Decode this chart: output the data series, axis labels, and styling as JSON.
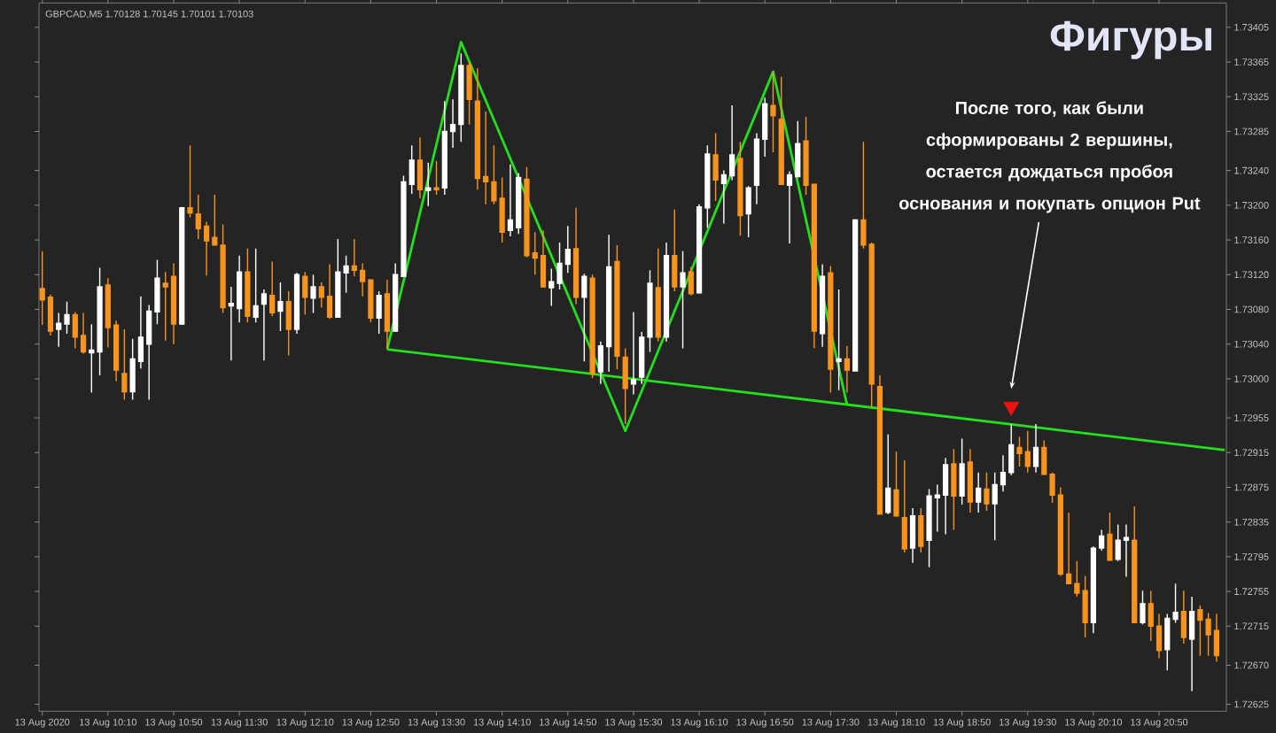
{
  "chart_data": {
    "type": "candlestick",
    "title": "Фигуры",
    "subtitle": "GBPCAD,M5 1.70128 1.70145 1.70101 1.70103",
    "x": [
      "2020-08-13T09:30",
      "2020-08-13T09:35",
      "2020-08-13T09:40",
      "2020-08-13T09:45",
      "2020-08-13T09:50",
      "2020-08-13T09:55",
      "2020-08-13T10:00",
      "2020-08-13T10:05",
      "2020-08-13T10:10",
      "2020-08-13T10:15",
      "2020-08-13T10:20",
      "2020-08-13T10:25",
      "2020-08-13T10:30",
      "2020-08-13T10:35",
      "2020-08-13T10:40",
      "2020-08-13T10:45",
      "2020-08-13T10:50",
      "2020-08-13T10:55",
      "2020-08-13T11:00",
      "2020-08-13T11:05",
      "2020-08-13T11:10",
      "2020-08-13T11:15",
      "2020-08-13T11:20",
      "2020-08-13T11:25",
      "2020-08-13T11:30",
      "2020-08-13T11:35",
      "2020-08-13T11:40",
      "2020-08-13T11:45",
      "2020-08-13T11:50",
      "2020-08-13T11:55",
      "2020-08-13T12:00",
      "2020-08-13T12:05",
      "2020-08-13T12:10",
      "2020-08-13T12:15",
      "2020-08-13T12:20",
      "2020-08-13T12:25",
      "2020-08-13T12:30",
      "2020-08-13T12:35",
      "2020-08-13T12:40",
      "2020-08-13T12:45",
      "2020-08-13T12:50",
      "2020-08-13T12:55",
      "2020-08-13T13:00",
      "2020-08-13T13:05",
      "2020-08-13T13:10",
      "2020-08-13T13:15",
      "2020-08-13T13:20",
      "2020-08-13T13:25",
      "2020-08-13T13:30",
      "2020-08-13T13:35",
      "2020-08-13T13:40",
      "2020-08-13T13:45",
      "2020-08-13T13:50",
      "2020-08-13T13:55",
      "2020-08-13T14:00",
      "2020-08-13T14:05",
      "2020-08-13T14:10",
      "2020-08-13T14:15",
      "2020-08-13T14:20",
      "2020-08-13T14:25",
      "2020-08-13T14:30",
      "2020-08-13T14:35",
      "2020-08-13T14:40",
      "2020-08-13T14:45",
      "2020-08-13T14:50",
      "2020-08-13T14:55",
      "2020-08-13T15:00",
      "2020-08-13T15:05",
      "2020-08-13T15:10",
      "2020-08-13T15:15",
      "2020-08-13T15:20",
      "2020-08-13T15:25",
      "2020-08-13T15:30",
      "2020-08-13T15:35",
      "2020-08-13T15:40",
      "2020-08-13T15:45",
      "2020-08-13T15:50",
      "2020-08-13T15:55",
      "2020-08-13T16:00",
      "2020-08-13T16:05",
      "2020-08-13T16:10",
      "2020-08-13T16:15",
      "2020-08-13T16:20",
      "2020-08-13T16:25",
      "2020-08-13T16:30",
      "2020-08-13T16:35",
      "2020-08-13T16:40",
      "2020-08-13T16:45",
      "2020-08-13T16:50",
      "2020-08-13T16:55",
      "2020-08-13T17:00",
      "2020-08-13T17:05",
      "2020-08-13T17:10",
      "2020-08-13T17:15",
      "2020-08-13T17:20",
      "2020-08-13T17:25",
      "2020-08-13T17:30",
      "2020-08-13T17:35",
      "2020-08-13T17:40",
      "2020-08-13T17:45",
      "2020-08-13T17:50",
      "2020-08-13T17:55",
      "2020-08-13T18:00",
      "2020-08-13T18:05",
      "2020-08-13T18:10",
      "2020-08-13T18:15",
      "2020-08-13T18:20",
      "2020-08-13T18:25",
      "2020-08-13T18:30",
      "2020-08-13T18:35",
      "2020-08-13T18:40",
      "2020-08-13T18:45",
      "2020-08-13T18:50",
      "2020-08-13T18:55",
      "2020-08-13T19:00",
      "2020-08-13T19:05",
      "2020-08-13T19:10",
      "2020-08-13T19:15",
      "2020-08-13T19:20",
      "2020-08-13T19:25",
      "2020-08-13T19:30",
      "2020-08-13T19:35",
      "2020-08-13T19:40",
      "2020-08-13T19:45",
      "2020-08-13T19:50",
      "2020-08-13T19:55",
      "2020-08-13T20:00",
      "2020-08-13T20:05",
      "2020-08-13T20:10",
      "2020-08-13T20:15",
      "2020-08-13T20:20",
      "2020-08-13T20:25",
      "2020-08-13T20:30",
      "2020-08-13T20:35",
      "2020-08-13T20:40",
      "2020-08-13T20:45",
      "2020-08-13T20:50",
      "2020-08-13T20:55",
      "2020-08-13T21:00",
      "2020-08-13T21:05",
      "2020-08-13T21:10",
      "2020-08-13T21:15",
      "2020-08-13T21:20",
      "2020-08-13T21:25"
    ],
    "ohlc": [
      [
        1.73104,
        1.73147,
        1.73062,
        1.73091
      ],
      [
        1.73094,
        1.73097,
        1.7305,
        1.73055
      ],
      [
        1.73057,
        1.73076,
        1.73037,
        1.73064
      ],
      [
        1.73063,
        1.73089,
        1.73052,
        1.73074
      ],
      [
        1.73074,
        1.73077,
        1.73035,
        1.73048
      ],
      [
        1.7305,
        1.73076,
        1.73029,
        1.73031
      ],
      [
        1.7303,
        1.73063,
        1.72984,
        1.73033
      ],
      [
        1.73031,
        1.73128,
        1.73004,
        1.73106
      ],
      [
        1.73108,
        1.73116,
        1.73036,
        1.73059
      ],
      [
        1.73062,
        1.73067,
        1.72997,
        1.7301
      ],
      [
        1.73006,
        1.73057,
        1.72976,
        1.72985
      ],
      [
        1.72985,
        1.73046,
        1.72976,
        1.73023
      ],
      [
        1.7302,
        1.73095,
        1.73012,
        1.73048
      ],
      [
        1.7304,
        1.73085,
        1.72976,
        1.73078
      ],
      [
        1.73077,
        1.73137,
        1.73063,
        1.73116
      ],
      [
        1.7311,
        1.73123,
        1.73044,
        1.73106
      ],
      [
        1.73118,
        1.73133,
        1.7304,
        1.73063
      ],
      [
        1.73063,
        1.73198,
        1.73062,
        1.73197
      ],
      [
        1.73197,
        1.73269,
        1.73186,
        1.73191
      ],
      [
        1.7319,
        1.73212,
        1.73161,
        1.73173
      ],
      [
        1.73176,
        1.73181,
        1.73119,
        1.73159
      ],
      [
        1.73163,
        1.73212,
        1.73154,
        1.73154
      ],
      [
        1.73154,
        1.73178,
        1.73076,
        1.73082
      ],
      [
        1.73084,
        1.73106,
        1.73021,
        1.73087
      ],
      [
        1.73081,
        1.73142,
        1.73065,
        1.73123
      ],
      [
        1.73123,
        1.7315,
        1.73065,
        1.73072
      ],
      [
        1.73071,
        1.7315,
        1.73065,
        1.73084
      ],
      [
        1.73086,
        1.73103,
        1.73021,
        1.73098
      ],
      [
        1.73096,
        1.73135,
        1.73072,
        1.73076
      ],
      [
        1.73078,
        1.73111,
        1.73055,
        1.73089
      ],
      [
        1.73089,
        1.73101,
        1.73027,
        1.73057
      ],
      [
        1.73057,
        1.73122,
        1.73052,
        1.7312
      ],
      [
        1.73118,
        1.73123,
        1.73074,
        1.73094
      ],
      [
        1.73093,
        1.7312,
        1.73076,
        1.73106
      ],
      [
        1.73106,
        1.73111,
        1.73082,
        1.73094
      ],
      [
        1.73095,
        1.73132,
        1.73069,
        1.73071
      ],
      [
        1.73071,
        1.73161,
        1.73071,
        1.73123
      ],
      [
        1.73122,
        1.73142,
        1.73099,
        1.7313
      ],
      [
        1.7313,
        1.73161,
        1.73118,
        1.73125
      ],
      [
        1.73125,
        1.73133,
        1.73095,
        1.73112
      ],
      [
        1.73114,
        1.73115,
        1.73065,
        1.7307
      ],
      [
        1.7307,
        1.73101,
        1.73052,
        1.73096
      ],
      [
        1.73098,
        1.73114,
        1.73035,
        1.73055
      ],
      [
        1.73055,
        1.73133,
        1.73054,
        1.7312
      ],
      [
        1.73118,
        1.73234,
        1.73118,
        1.73227
      ],
      [
        1.73224,
        1.73269,
        1.73213,
        1.73252
      ],
      [
        1.73252,
        1.73278,
        1.73208,
        1.73218
      ],
      [
        1.73217,
        1.73249,
        1.73199,
        1.7322
      ],
      [
        1.7322,
        1.73251,
        1.73212,
        1.73218
      ],
      [
        1.7322,
        1.7332,
        1.73212,
        1.73285
      ],
      [
        1.73285,
        1.73322,
        1.73266,
        1.73293
      ],
      [
        1.73293,
        1.73375,
        1.73273,
        1.73361
      ],
      [
        1.73361,
        1.73365,
        1.73293,
        1.73322
      ],
      [
        1.7332,
        1.73358,
        1.73218,
        1.73231
      ],
      [
        1.73233,
        1.73308,
        1.73201,
        1.73227
      ],
      [
        1.73227,
        1.73269,
        1.73201,
        1.73205
      ],
      [
        1.73208,
        1.73232,
        1.73157,
        1.73169
      ],
      [
        1.73171,
        1.73247,
        1.73164,
        1.73183
      ],
      [
        1.73174,
        1.73237,
        1.73167,
        1.73232
      ],
      [
        1.7323,
        1.73244,
        1.7314,
        1.73142
      ],
      [
        1.73145,
        1.73169,
        1.7312,
        1.73139
      ],
      [
        1.73142,
        1.73171,
        1.73105,
        1.73106
      ],
      [
        1.73105,
        1.73127,
        1.73084,
        1.73112
      ],
      [
        1.7311,
        1.73157,
        1.73103,
        1.73133
      ],
      [
        1.73132,
        1.73176,
        1.73122,
        1.73149
      ],
      [
        1.7315,
        1.73197,
        1.73086,
        1.73094
      ],
      [
        1.73094,
        1.73121,
        1.7302,
        1.73118
      ],
      [
        1.73116,
        1.7312,
        1.73001,
        1.73006
      ],
      [
        1.73008,
        1.73043,
        1.72994,
        1.73038
      ],
      [
        1.73037,
        1.73166,
        1.73008,
        1.73129
      ],
      [
        1.73135,
        1.73154,
        1.73011,
        1.73026
      ],
      [
        1.73025,
        1.73035,
        1.72948,
        1.72989
      ],
      [
        1.72994,
        1.73077,
        1.72982,
        1.72999
      ],
      [
        1.73002,
        1.73054,
        1.72994,
        1.73048
      ],
      [
        1.73048,
        1.73125,
        1.73031,
        1.7311
      ],
      [
        1.73105,
        1.7315,
        1.73043,
        1.73048
      ],
      [
        1.73048,
        1.73157,
        1.73043,
        1.73142
      ],
      [
        1.73142,
        1.73195,
        1.73101,
        1.73106
      ],
      [
        1.73106,
        1.73147,
        1.73035,
        1.73122
      ],
      [
        1.73123,
        1.73129,
        1.73096,
        1.73098
      ],
      [
        1.73099,
        1.73201,
        1.73098,
        1.73198
      ],
      [
        1.73197,
        1.73269,
        1.73174,
        1.73259
      ],
      [
        1.73258,
        1.73283,
        1.73205,
        1.73229
      ],
      [
        1.73225,
        1.7324,
        1.73179,
        1.73235
      ],
      [
        1.73234,
        1.73315,
        1.73229,
        1.73258
      ],
      [
        1.73254,
        1.73273,
        1.73165,
        1.73188
      ],
      [
        1.7319,
        1.73222,
        1.73163,
        1.7322
      ],
      [
        1.73223,
        1.73283,
        1.73201,
        1.73276
      ],
      [
        1.73276,
        1.73324,
        1.73256,
        1.73317
      ],
      [
        1.73315,
        1.73354,
        1.73261,
        1.73303
      ],
      [
        1.73299,
        1.73348,
        1.73224,
        1.73224
      ],
      [
        1.73223,
        1.73239,
        1.73156,
        1.73235
      ],
      [
        1.73233,
        1.73297,
        1.73232,
        1.73271
      ],
      [
        1.73274,
        1.73302,
        1.73212,
        1.73223
      ],
      [
        1.73224,
        1.73225,
        1.73035,
        1.73055
      ],
      [
        1.73052,
        1.73132,
        1.73037,
        1.73118
      ],
      [
        1.73122,
        1.7313,
        1.72984,
        1.73011
      ],
      [
        1.7302,
        1.73103,
        1.72987,
        1.73023
      ],
      [
        1.73023,
        1.73038,
        1.72984,
        1.7301
      ],
      [
        1.73009,
        1.73184,
        1.73009,
        1.73183
      ],
      [
        1.73183,
        1.73273,
        1.7315,
        1.73154
      ],
      [
        1.73155,
        1.73157,
        1.72967,
        1.72994
      ],
      [
        1.72991,
        1.73004,
        1.72844,
        1.72844
      ],
      [
        1.72846,
        1.72936,
        1.72844,
        1.72874
      ],
      [
        1.72872,
        1.72916,
        1.72841,
        1.72842
      ],
      [
        1.7284,
        1.72906,
        1.728,
        1.72804
      ],
      [
        1.72805,
        1.72851,
        1.72788,
        1.72842
      ],
      [
        1.72842,
        1.72851,
        1.728,
        1.72807
      ],
      [
        1.72814,
        1.72873,
        1.72783,
        1.72865
      ],
      [
        1.72863,
        1.72878,
        1.72824,
        1.72866
      ],
      [
        1.72866,
        1.72909,
        1.72821,
        1.72901
      ],
      [
        1.72902,
        1.72919,
        1.72826,
        1.72865
      ],
      [
        1.72865,
        1.72931,
        1.72855,
        1.72902
      ],
      [
        1.72904,
        1.72919,
        1.72846,
        1.72858
      ],
      [
        1.72858,
        1.72892,
        1.72846,
        1.72874
      ],
      [
        1.72873,
        1.72892,
        1.72848,
        1.72856
      ],
      [
        1.72856,
        1.72892,
        1.72814,
        1.72878
      ],
      [
        1.72878,
        1.72912,
        1.7287,
        1.72892
      ],
      [
        1.72892,
        1.72948,
        1.72889,
        1.72924
      ],
      [
        1.72921,
        1.72933,
        1.72899,
        1.72914
      ],
      [
        1.72916,
        1.7294,
        1.72892,
        1.72899
      ],
      [
        1.72899,
        1.72948,
        1.72892,
        1.72921
      ],
      [
        1.72921,
        1.72929,
        1.72889,
        1.7289
      ],
      [
        1.7289,
        1.72892,
        1.72857,
        1.72866
      ],
      [
        1.72866,
        1.72875,
        1.72773,
        1.72775
      ],
      [
        1.72775,
        1.72846,
        1.72763,
        1.72764
      ],
      [
        1.72764,
        1.7279,
        1.72749,
        1.72753
      ],
      [
        1.72756,
        1.72773,
        1.72702,
        1.72719
      ],
      [
        1.72719,
        1.72807,
        1.72707,
        1.72805
      ],
      [
        1.72805,
        1.72826,
        1.72802,
        1.72819
      ],
      [
        1.72821,
        1.72846,
        1.7279,
        1.72791
      ],
      [
        1.72792,
        1.72832,
        1.7279,
        1.72814
      ],
      [
        1.72814,
        1.72832,
        1.72772,
        1.72817
      ],
      [
        1.72814,
        1.72853,
        1.72719,
        1.72719
      ],
      [
        1.72719,
        1.72756,
        1.72717,
        1.72741
      ],
      [
        1.72741,
        1.72756,
        1.72698,
        1.72715
      ],
      [
        1.72715,
        1.72729,
        1.72678,
        1.72687
      ],
      [
        1.72688,
        1.72729,
        1.72664,
        1.72724
      ],
      [
        1.72723,
        1.72764,
        1.72719,
        1.72731
      ],
      [
        1.72732,
        1.72756,
        1.72695,
        1.72702
      ],
      [
        1.727,
        1.72749,
        1.7264,
        1.72732
      ],
      [
        1.72734,
        1.72739,
        1.72681,
        1.72722
      ],
      [
        1.72723,
        1.7273,
        1.72681,
        1.72705
      ],
      [
        1.7271,
        1.72729,
        1.72674,
        1.72681
      ]
    ],
    "colors": [
      "#f7941d",
      "#f7941d",
      "#ffffff",
      "#ffffff",
      "#f7941d",
      "#f7941d",
      "#ffffff",
      "#ffffff",
      "#f7941d",
      "#f7941d",
      "#f7941d",
      "#ffffff",
      "#ffffff",
      "#ffffff",
      "#ffffff",
      "#f7941d",
      "#f7941d",
      "#ffffff",
      "#f7941d",
      "#f7941d",
      "#f7941d",
      "#f7941d",
      "#f7941d",
      "#ffffff",
      "#ffffff",
      "#f7941d",
      "#ffffff",
      "#ffffff",
      "#f7941d",
      "#ffffff",
      "#f7941d",
      "#ffffff",
      "#f7941d",
      "#ffffff",
      "#f7941d",
      "#f7941d",
      "#ffffff",
      "#ffffff",
      "#f7941d",
      "#f7941d",
      "#f7941d",
      "#ffffff",
      "#f7941d",
      "#ffffff",
      "#ffffff",
      "#ffffff",
      "#f7941d",
      "#ffffff",
      "#f7941d",
      "#ffffff",
      "#ffffff",
      "#ffffff",
      "#f7941d",
      "#f7941d",
      "#f7941d",
      "#f7941d",
      "#f7941d",
      "#ffffff",
      "#ffffff",
      "#f7941d",
      "#f7941d",
      "#f7941d",
      "#ffffff",
      "#ffffff",
      "#ffffff",
      "#f7941d",
      "#ffffff",
      "#f7941d",
      "#ffffff",
      "#ffffff",
      "#f7941d",
      "#f7941d",
      "#ffffff",
      "#ffffff",
      "#ffffff",
      "#f7941d",
      "#ffffff",
      "#f7941d",
      "#ffffff",
      "#f7941d",
      "#ffffff",
      "#ffffff",
      "#f7941d",
      "#ffffff",
      "#ffffff",
      "#f7941d",
      "#ffffff",
      "#ffffff",
      "#ffffff",
      "#f7941d",
      "#f7941d",
      "#ffffff",
      "#ffffff",
      "#f7941d",
      "#f7941d",
      "#ffffff",
      "#f7941d",
      "#ffffff",
      "#f7941d",
      "#ffffff",
      "#f7941d",
      "#f7941d",
      "#f7941d",
      "#ffffff",
      "#f7941d",
      "#f7941d",
      "#ffffff",
      "#f7941d",
      "#ffffff",
      "#ffffff",
      "#ffffff",
      "#f7941d",
      "#ffffff",
      "#f7941d",
      "#ffffff",
      "#f7941d",
      "#ffffff",
      "#ffffff",
      "#ffffff",
      "#f7941d",
      "#f7941d",
      "#ffffff",
      "#f7941d",
      "#f7941d",
      "#f7941d",
      "#f7941d",
      "#f7941d",
      "#f7941d",
      "#ffffff",
      "#ffffff",
      "#f7941d",
      "#ffffff",
      "#ffffff",
      "#f7941d",
      "#ffffff",
      "#f7941d",
      "#f7941d",
      "#ffffff",
      "#ffffff",
      "#f7941d",
      "#ffffff",
      "#f7941d",
      "#f7941d",
      "#f7941d"
    ],
    "series": [
      {
        "type": "line",
        "color": "#22e01c",
        "x": [
          "2020-08-13T13:00",
          "2020-08-13T13:45",
          "2020-08-13T15:25",
          "2020-08-13T16:55",
          "2020-08-13T17:40"
        ],
        "values": [
          1.73034,
          1.73388,
          1.7294,
          1.73354,
          1.7297
        ]
      },
      {
        "type": "line",
        "color": "#22e01c",
        "x": [
          "2020-08-13T13:00",
          "2020-08-13T21:30"
        ],
        "values": [
          1.73034,
          1.72918
        ]
      },
      {
        "type": "scatter",
        "color": "#f01010",
        "marker": "triangle",
        "x": [
          "2020-08-13T19:20"
        ],
        "values": [
          1.72968
        ]
      }
    ],
    "xlim": [
      "2020-08-13T09:28",
      "2020-08-13T21:31"
    ],
    "xticks": [
      {
        "value": "2020-08-13T09:30",
        "label": "13 Aug 2020"
      },
      {
        "value": "2020-08-13T10:10",
        "label": "13 Aug 10:10"
      },
      {
        "value": "2020-08-13T10:50",
        "label": "13 Aug 10:50"
      },
      {
        "value": "2020-08-13T11:30",
        "label": "13 Aug 11:30"
      },
      {
        "value": "2020-08-13T12:10",
        "label": "13 Aug 12:10"
      },
      {
        "value": "2020-08-13T12:50",
        "label": "13 Aug 12:50"
      },
      {
        "value": "2020-08-13T13:30",
        "label": "13 Aug 13:30"
      },
      {
        "value": "2020-08-13T14:10",
        "label": "13 Aug 14:10"
      },
      {
        "value": "2020-08-13T14:50",
        "label": "13 Aug 14:50"
      },
      {
        "value": "2020-08-13T15:30",
        "label": "13 Aug 15:30"
      },
      {
        "value": "2020-08-13T16:10",
        "label": "13 Aug 16:10"
      },
      {
        "value": "2020-08-13T16:50",
        "label": "13 Aug 16:50"
      },
      {
        "value": "2020-08-13T17:30",
        "label": "13 Aug 17:30"
      },
      {
        "value": "2020-08-13T18:10",
        "label": "13 Aug 18:10"
      },
      {
        "value": "2020-08-13T18:50",
        "label": "13 Aug 18:50"
      },
      {
        "value": "2020-08-13T19:30",
        "label": "13 Aug 19:30"
      },
      {
        "value": "2020-08-13T20:10",
        "label": "13 Aug 20:10"
      },
      {
        "value": "2020-08-13T20:50",
        "label": "13 Aug 20:50"
      }
    ],
    "ylim": [
      1.72617,
      1.73433
    ],
    "yticks": [
      1.73405,
      1.73365,
      1.73325,
      1.73285,
      {
        "value": 1.7324,
        "label": "1.73240"
      },
      {
        "value": 1.732,
        "label": "1.73200"
      },
      {
        "value": 1.7316,
        "label": "1.73160"
      },
      {
        "value": 1.7312,
        "label": "1.73120"
      },
      {
        "value": 1.7308,
        "label": "1.73080"
      },
      {
        "value": 1.7304,
        "label": "1.73040"
      },
      {
        "value": 1.73,
        "label": "1.73000"
      },
      1.72955,
      1.72915,
      1.72875,
      1.72835,
      1.72795,
      1.72755,
      1.72715,
      {
        "value": 1.7267,
        "label": "1.72670"
      },
      1.72625
    ],
    "annotations": [
      "После того, как были сформированы 2 вершины, остается дождаться пробоя основания и покупать опцион Put"
    ]
  }
}
